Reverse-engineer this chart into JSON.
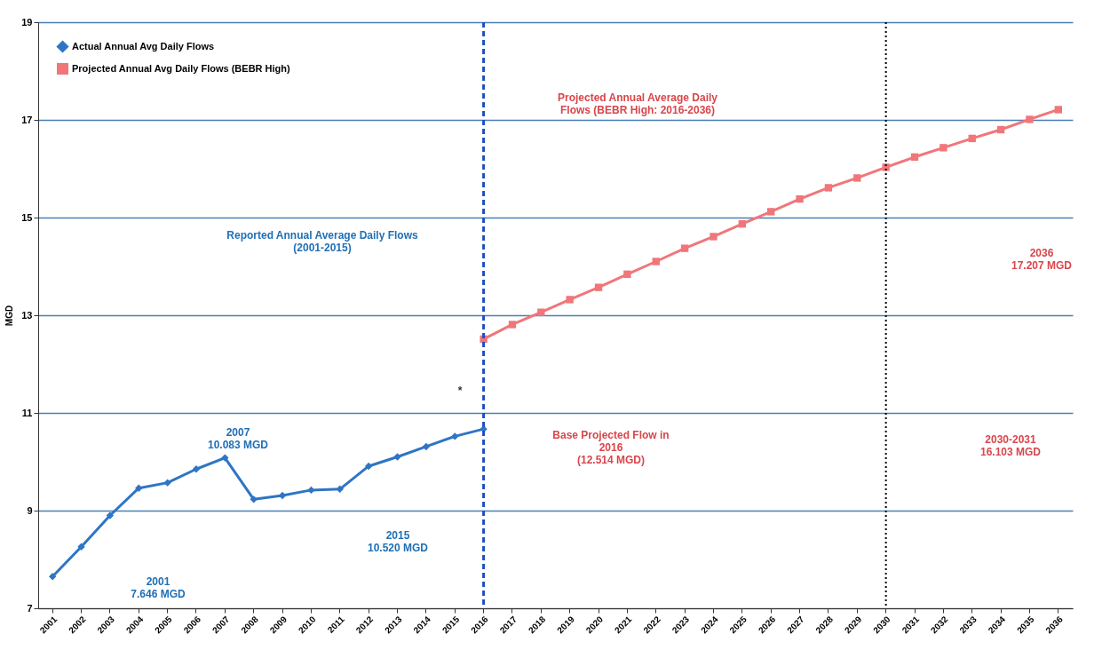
{
  "chart_data": {
    "type": "line",
    "ylabel": "MGD",
    "categories": [
      "2001",
      "2002",
      "2003",
      "2004",
      "2005",
      "2006",
      "2007",
      "2008",
      "2009",
      "2010",
      "2011",
      "2012",
      "2013",
      "2014",
      "2015",
      "2016",
      "2017",
      "2018",
      "2019",
      "2020",
      "2021",
      "2022",
      "2023",
      "2024",
      "2025",
      "2026",
      "2027",
      "2028",
      "2029",
      "2030",
      "2031",
      "2032",
      "2033",
      "2034",
      "2035",
      "2036"
    ],
    "series": [
      {
        "name": "Actual Annual Avg Daily Flows",
        "color": "#2e75c4",
        "marker": "diamond",
        "values": [
          7.65,
          8.26,
          8.9,
          9.46,
          9.57,
          9.85,
          10.08,
          9.23,
          9.31,
          9.42,
          9.44,
          9.91,
          10.1,
          10.31,
          10.52,
          10.67,
          null,
          null,
          null,
          null,
          null,
          null,
          null,
          null,
          null,
          null,
          null,
          null,
          null,
          null,
          null,
          null,
          null,
          null,
          null,
          null
        ]
      },
      {
        "name": "Projected Annual Avg Daily Flows (BEBR High)",
        "color": "#f0767a",
        "marker": "square",
        "values": [
          null,
          null,
          null,
          null,
          null,
          null,
          null,
          null,
          null,
          null,
          null,
          null,
          null,
          null,
          null,
          12.51,
          12.81,
          13.06,
          13.32,
          13.57,
          13.84,
          14.1,
          14.37,
          14.61,
          14.87,
          15.12,
          15.38,
          15.61,
          15.81,
          16.03,
          16.24,
          16.43,
          16.62,
          16.8,
          17.01,
          17.21
        ]
      }
    ],
    "ylim": [
      7,
      19
    ],
    "yticks": [
      7,
      9,
      11,
      13,
      15,
      17,
      19
    ],
    "grid": "y",
    "legend": "top left",
    "ref_lines": [
      {
        "axis": "x",
        "value": "2016",
        "color": "#1f4fbf",
        "line_style": "dashed"
      },
      {
        "axis": "x",
        "value": "2030",
        "color": "#000000",
        "line_style": "dotted"
      }
    ],
    "annotations": [
      "2001\n7.646 MGD",
      "2007\n10.083 MGD",
      "2015\n10.520 MGD",
      "Base Projected Flow in\n2016\n(12.514 MGD)",
      "2036\n17.207 MGD",
      "2030-2031\n16.103 MGD",
      "Reported Annual Average Daily Flows\n(2001-2015)",
      "Projected Annual Average Daily\nFlows (BEBR High: 2016-2036)",
      "*"
    ]
  }
}
